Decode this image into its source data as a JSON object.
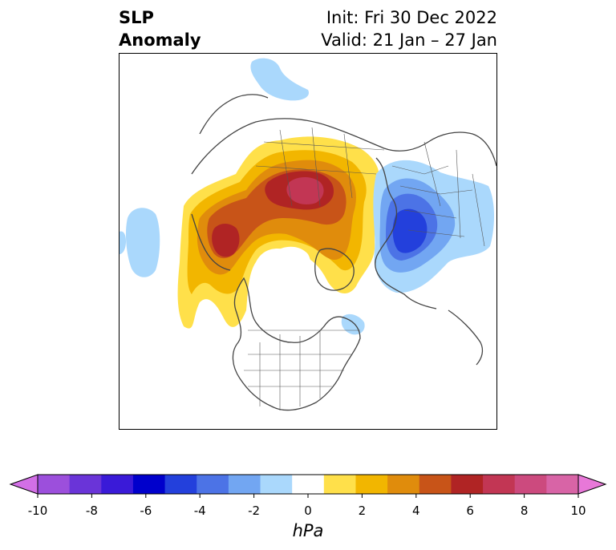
{
  "title": {
    "line1": "SLP",
    "line2": "Anomaly",
    "init": "Init: Fri 30 Dec 2022",
    "valid": "Valid: 21 Jan – 27 Jan"
  },
  "colorbar": {
    "unit": "hPa",
    "ticks": [
      "-10",
      "-8",
      "-6",
      "-4",
      "-2",
      "0",
      "2",
      "4",
      "6",
      "8",
      "10"
    ],
    "colors": [
      "#d26fe6",
      "#9c4fdc",
      "#6a34d8",
      "#3a1ad8",
      "#0000cc",
      "#2340dc",
      "#4c73e6",
      "#72a6f2",
      "#aad8fc",
      "#ffffff",
      "#ffe04a",
      "#f2b600",
      "#e08c0c",
      "#c85418",
      "#b02424",
      "#c23654",
      "#cc4a7e",
      "#d864a6",
      "#e878d8"
    ]
  },
  "map": {
    "positive_anomaly_colors": [
      "#ffe04a",
      "#f2b600",
      "#e08c0c",
      "#c85418",
      "#b02424",
      "#c23654"
    ],
    "negative_anomaly_colors": [
      "#aad8fc",
      "#72a6f2",
      "#4c73e6",
      "#2340dc"
    ]
  }
}
